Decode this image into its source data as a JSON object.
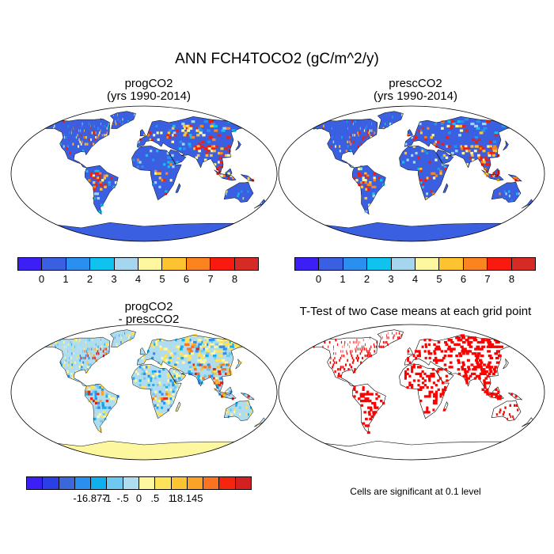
{
  "title": "ANN FCH4TOCO2 (gC/m^2/y)",
  "panels": [
    {
      "title_line1": "progCO2",
      "title_line2": "(yrs 1990-2014)",
      "style": "abs"
    },
    {
      "title_line1": "prescCO2",
      "title_line2": "(yrs 1990-2014)",
      "style": "abs"
    },
    {
      "title_line1": "progCO2",
      "title_line2": "- prescCO2",
      "style": "diff"
    },
    {
      "title_line1": "T-Test of two Case means at each grid point",
      "title_line2": "",
      "style": "ttest"
    }
  ],
  "colorbar_abs": {
    "colors": [
      "#3b1ff5",
      "#3a5fe0",
      "#2b8ff0",
      "#10c2ee",
      "#a6d6ee",
      "#fdf7a0",
      "#fdc331",
      "#fb8421",
      "#f81a0e",
      "#d62a25"
    ],
    "labels": [
      "0",
      "1",
      "2",
      "3",
      "4",
      "5",
      "6",
      "7",
      "8"
    ]
  },
  "colorbar_diff": {
    "colors": [
      "#3b1ff5",
      "#2b3fe6",
      "#3a68dc",
      "#2b8ff0",
      "#10b0ee",
      "#6fc8ef",
      "#b0dcf0",
      "#fdf7a0",
      "#fee35a",
      "#fdc331",
      "#fba328",
      "#fb7321",
      "#f6250f",
      "#d42020"
    ],
    "labels": [
      "-16.877",
      "-1",
      "-.5",
      "0",
      ".5",
      "1",
      "18.145"
    ]
  },
  "significance_note": "Cells are significant at 0.1 level",
  "map_colors": {
    "ocean": "#ffffff",
    "outline": "#000000",
    "abs_base": "#3a5fe0",
    "diff_base": "#b0dcf0",
    "ttest_fill": "#ff0000",
    "antarctica_abs": "#3a5fe0",
    "antarctica_diff": "#fdf7a0"
  }
}
